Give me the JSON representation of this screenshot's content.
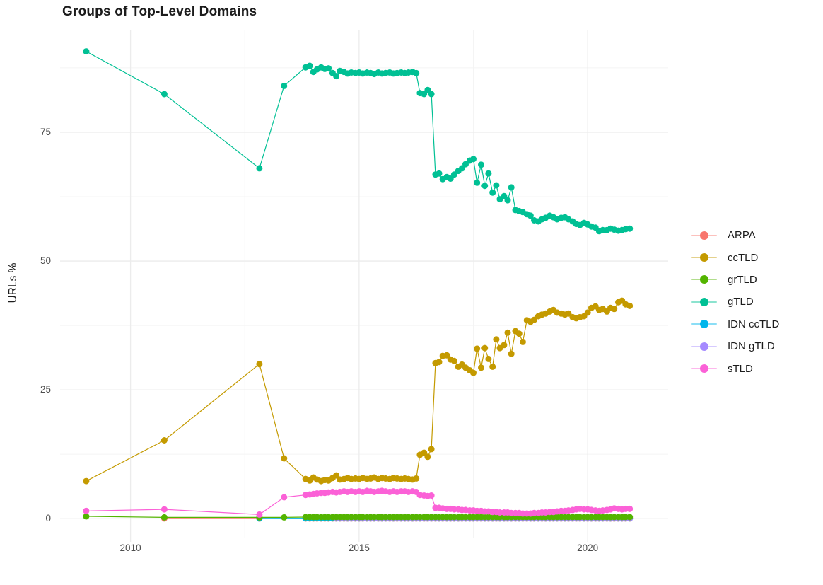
{
  "title": "Groups of Top-Level Domains",
  "y_axis": {
    "label": "URLs %",
    "tick_labels": [
      "0",
      "25",
      "50",
      "75"
    ],
    "tick_values": [
      0,
      25,
      50,
      75
    ]
  },
  "x_axis": {
    "tick_labels": [
      "2010",
      "2015",
      "2020"
    ],
    "tick_values": [
      2010,
      2015,
      2020
    ]
  },
  "colors": {
    "grid_major": "#ECECEC",
    "grid_minor": "#F4F4F4",
    "tick_text": "#4D4D4D",
    "title_text": "#1C1C1C",
    "background": "#FFFFFF"
  },
  "chart_data": {
    "type": "line",
    "title": "Groups of Top-Level Domains",
    "xlabel": "",
    "ylabel": "URLs %",
    "xlim": [
      2008.46,
      2021.76
    ],
    "ylim": [
      -3.4,
      94.9
    ],
    "x_ticks": [
      2010,
      2015,
      2020
    ],
    "y_ticks": [
      0,
      25,
      50,
      75
    ],
    "x_minor_ticks": [
      2012.5,
      2017.5
    ],
    "y_minor_ticks": [
      12.5,
      37.5,
      62.5,
      87.5
    ],
    "grid": true,
    "legend_position": "right",
    "marker_radius": 4.5,
    "draw_order": [
      0,
      4,
      5,
      2,
      1,
      3,
      6
    ],
    "dense_x": [
      2013.83,
      2013.92,
      2014,
      2014.08,
      2014.17,
      2014.25,
      2014.33,
      2014.42,
      2014.5,
      2014.58,
      2014.67,
      2014.75,
      2014.83,
      2014.92,
      2015,
      2015.08,
      2015.17,
      2015.25,
      2015.33,
      2015.42,
      2015.5,
      2015.58,
      2015.67,
      2015.75,
      2015.83,
      2015.92,
      2016,
      2016.08,
      2016.17,
      2016.25,
      2016.33,
      2016.42,
      2016.5,
      2016.58,
      2016.67,
      2016.75,
      2016.83,
      2016.92,
      2017,
      2017.08,
      2017.17,
      2017.25,
      2017.33,
      2017.42,
      2017.5,
      2017.58,
      2017.67,
      2017.75,
      2017.83,
      2017.92,
      2018,
      2018.08,
      2018.17,
      2018.25,
      2018.33,
      2018.42,
      2018.5,
      2018.58,
      2018.67,
      2018.75,
      2018.83,
      2018.92,
      2019,
      2019.08,
      2019.17,
      2019.25,
      2019.33,
      2019.42,
      2019.5,
      2019.58,
      2019.67,
      2019.75,
      2019.83,
      2019.92,
      2020,
      2020.08,
      2020.17,
      2020.25,
      2020.33,
      2020.42,
      2020.5,
      2020.58,
      2020.67,
      2020.75,
      2020.83,
      2020.92
    ],
    "series": [
      {
        "name": "ARPA",
        "color": "#F8766D",
        "early": [
          [
            2010.74,
            0.05
          ],
          [
            2012.82,
            0.05
          ]
        ],
        "dense_fill": 0.03
      },
      {
        "name": "ccTLD",
        "color": "#C49A00",
        "early": [
          [
            2009.03,
            7.3
          ],
          [
            2010.74,
            15.2
          ],
          [
            2012.82,
            30.0
          ],
          [
            2013.36,
            11.7
          ]
        ],
        "dense_y": [
          7.7,
          7.4,
          8.0,
          7.6,
          7.3,
          7.5,
          7.4,
          7.9,
          8.4,
          7.6,
          7.7,
          7.9,
          7.7,
          7.8,
          7.7,
          7.9,
          7.7,
          7.8,
          8.0,
          7.7,
          7.9,
          7.8,
          7.7,
          7.9,
          7.8,
          7.7,
          7.8,
          7.7,
          7.6,
          7.8,
          12.4,
          12.8,
          12.0,
          13.5,
          30.2,
          30.4,
          31.6,
          31.7,
          30.9,
          30.6,
          29.5,
          29.9,
          29.3,
          28.8,
          28.3,
          33.0,
          29.3,
          33.1,
          31.0,
          29.5,
          34.8,
          33.1,
          33.7,
          36.1,
          32.0,
          36.4,
          35.9,
          34.3,
          38.5,
          38.2,
          38.6,
          39.3,
          39.6,
          39.8,
          40.2,
          40.5,
          40.0,
          39.8,
          39.6,
          39.8,
          39.1,
          38.9,
          39.1,
          39.3,
          40.0,
          40.9,
          41.2,
          40.5,
          40.7,
          40.2,
          40.9,
          40.7,
          42.0,
          42.3,
          41.6,
          41.3
        ]
      },
      {
        "name": "grTLD",
        "color": "#53B400",
        "early": [
          [
            2009.03,
            0.45
          ],
          [
            2010.74,
            0.25
          ],
          [
            2012.82,
            0.25
          ],
          [
            2013.36,
            0.25
          ]
        ],
        "dense_fill": 0.3
      },
      {
        "name": "gTLD",
        "color": "#00C094",
        "early": [
          [
            2009.03,
            90.7
          ],
          [
            2010.74,
            82.4
          ],
          [
            2012.82,
            68.0
          ],
          [
            2013.36,
            84.0
          ]
        ],
        "dense_y": [
          87.6,
          87.9,
          86.7,
          87.2,
          87.6,
          87.3,
          87.4,
          86.5,
          85.9,
          86.9,
          86.7,
          86.4,
          86.6,
          86.5,
          86.6,
          86.4,
          86.6,
          86.5,
          86.3,
          86.6,
          86.4,
          86.5,
          86.6,
          86.4,
          86.5,
          86.6,
          86.5,
          86.6,
          86.7,
          86.5,
          82.6,
          82.4,
          83.2,
          82.4,
          66.8,
          67.0,
          65.9,
          66.3,
          66.0,
          66.8,
          67.5,
          68.0,
          68.8,
          69.5,
          69.8,
          65.2,
          68.7,
          64.6,
          67.0,
          63.3,
          64.7,
          62.0,
          62.6,
          61.8,
          64.3,
          59.9,
          59.7,
          59.5,
          59.1,
          58.8,
          57.9,
          57.7,
          58.1,
          58.4,
          58.8,
          58.5,
          58.1,
          58.4,
          58.5,
          58.1,
          57.7,
          57.2,
          57.0,
          57.4,
          57.1,
          56.7,
          56.5,
          55.8,
          56.0,
          56.0,
          56.3,
          56.1,
          55.9,
          56.0,
          56.2,
          56.3
        ]
      },
      {
        "name": "IDN ccTLD",
        "color": "#00B6EB",
        "early": [
          [
            2012.82,
            0.05
          ]
        ],
        "dense_fill": 0.08
      },
      {
        "name": "IDN gTLD",
        "color": "#A58AFF",
        "early": [],
        "dense_fill": 0.06,
        "dense_from": 2014.5
      },
      {
        "name": "sTLD",
        "color": "#FB61D7",
        "early": [
          [
            2009.03,
            1.5
          ],
          [
            2010.74,
            1.8
          ],
          [
            2012.82,
            0.8
          ],
          [
            2013.36,
            4.15
          ]
        ],
        "dense_y": [
          4.6,
          4.7,
          4.8,
          4.9,
          5.0,
          5.0,
          5.1,
          5.2,
          5.1,
          5.2,
          5.3,
          5.2,
          5.3,
          5.2,
          5.3,
          5.2,
          5.4,
          5.3,
          5.2,
          5.3,
          5.4,
          5.3,
          5.2,
          5.3,
          5.2,
          5.3,
          5.3,
          5.2,
          5.3,
          5.2,
          4.6,
          4.5,
          4.4,
          4.5,
          2.1,
          2.1,
          2.0,
          1.9,
          1.9,
          1.8,
          1.8,
          1.7,
          1.7,
          1.6,
          1.6,
          1.5,
          1.5,
          1.4,
          1.4,
          1.3,
          1.3,
          1.2,
          1.2,
          1.2,
          1.1,
          1.1,
          1.1,
          1.0,
          1.0,
          1.0,
          1.1,
          1.1,
          1.2,
          1.2,
          1.3,
          1.3,
          1.4,
          1.5,
          1.5,
          1.6,
          1.7,
          1.8,
          1.9,
          1.8,
          1.8,
          1.7,
          1.6,
          1.5,
          1.6,
          1.7,
          1.8,
          2.0,
          1.9,
          1.8,
          1.9,
          1.9
        ]
      }
    ]
  }
}
